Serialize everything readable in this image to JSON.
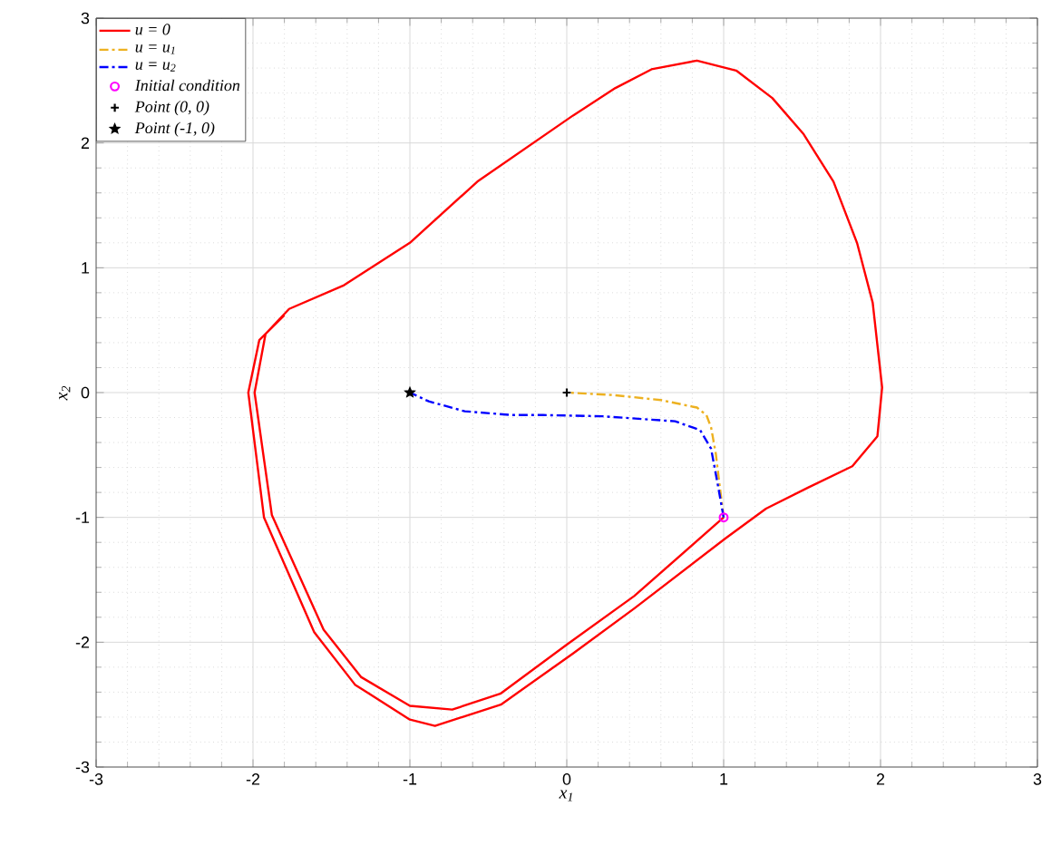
{
  "chart_data": {
    "type": "line",
    "xlabel": "x$_{1}$",
    "ylabel": "x$_{2}$",
    "xlim": [
      -3,
      3
    ],
    "ylim": [
      -3,
      3
    ],
    "xticks": [
      -3,
      -2,
      -1,
      0,
      1,
      2,
      3
    ],
    "yticks": [
      -3,
      -2,
      -1,
      0,
      1,
      2,
      3
    ],
    "grid": true,
    "legend": "top left",
    "series": [
      {
        "name": "u = 0",
        "color": "#ff0000",
        "line_style": "solid",
        "x": [
          1,
          0.43,
          0,
          -0.42,
          -0.73,
          -1.0,
          -1.31,
          -1.55,
          -1.88,
          -1.99,
          -1.92,
          -1.77,
          -1.42,
          -1.0,
          -0.57,
          0.04,
          0.31,
          0.54,
          0.83,
          1.08,
          1.31,
          1.51,
          1.7,
          1.85,
          1.95,
          2.01,
          1.98,
          1.82,
          1.54,
          1.27,
          1.01,
          0.43,
          0.04,
          -0.42,
          -0.84,
          -1.0,
          -1.35,
          -1.61,
          -1.93,
          -2.03,
          -1.96,
          -1.8
        ],
        "values": [
          -1,
          -1.63,
          -2.02,
          -2.41,
          -2.54,
          -2.51,
          -2.28,
          -1.9,
          -0.98,
          0,
          0.47,
          0.67,
          0.86,
          1.2,
          1.69,
          2.22,
          2.44,
          2.59,
          2.66,
          2.58,
          2.36,
          2.07,
          1.69,
          1.2,
          0.72,
          0.04,
          -0.35,
          -0.59,
          -0.76,
          -0.93,
          -1.17,
          -1.73,
          -2.09,
          -2.5,
          -2.67,
          -2.62,
          -2.34,
          -1.92,
          -1.0,
          0,
          0.42,
          0.62
        ]
      },
      {
        "name": "u = u$_{1}$",
        "color": "#edb120",
        "line_style": "dashed",
        "x": [
          1,
          0.97,
          0.95,
          0.92,
          0.89,
          0.83,
          0.6,
          0.3,
          0
        ],
        "values": [
          -1,
          -0.7,
          -0.49,
          -0.28,
          -0.18,
          -0.12,
          -0.06,
          -0.02,
          0
        ]
      },
      {
        "name": "u = u$_{2}$",
        "color": "#0000ff",
        "line_style": "dashed",
        "x": [
          1,
          0.96,
          0.92,
          0.85,
          0.69,
          0.23,
          -0.15,
          -0.35,
          -0.65,
          -0.88,
          -1
        ],
        "values": [
          -1,
          -0.72,
          -0.45,
          -0.3,
          -0.23,
          -0.19,
          -0.18,
          -0.18,
          -0.15,
          -0.07,
          0
        ]
      },
      {
        "name": "Initial condition",
        "type": "scatter",
        "marker": "circle",
        "color": "#ff00ff",
        "x": [
          1
        ],
        "values": [
          -1
        ]
      },
      {
        "name": "Point (0, 0)",
        "type": "scatter",
        "marker": "cross",
        "color": "#000000",
        "x": [
          0
        ],
        "values": [
          0
        ]
      },
      {
        "name": "Point (-1, 0)",
        "type": "scatter",
        "marker": "star",
        "color": "#000000",
        "x": [
          -1
        ],
        "values": [
          0
        ]
      }
    ]
  }
}
